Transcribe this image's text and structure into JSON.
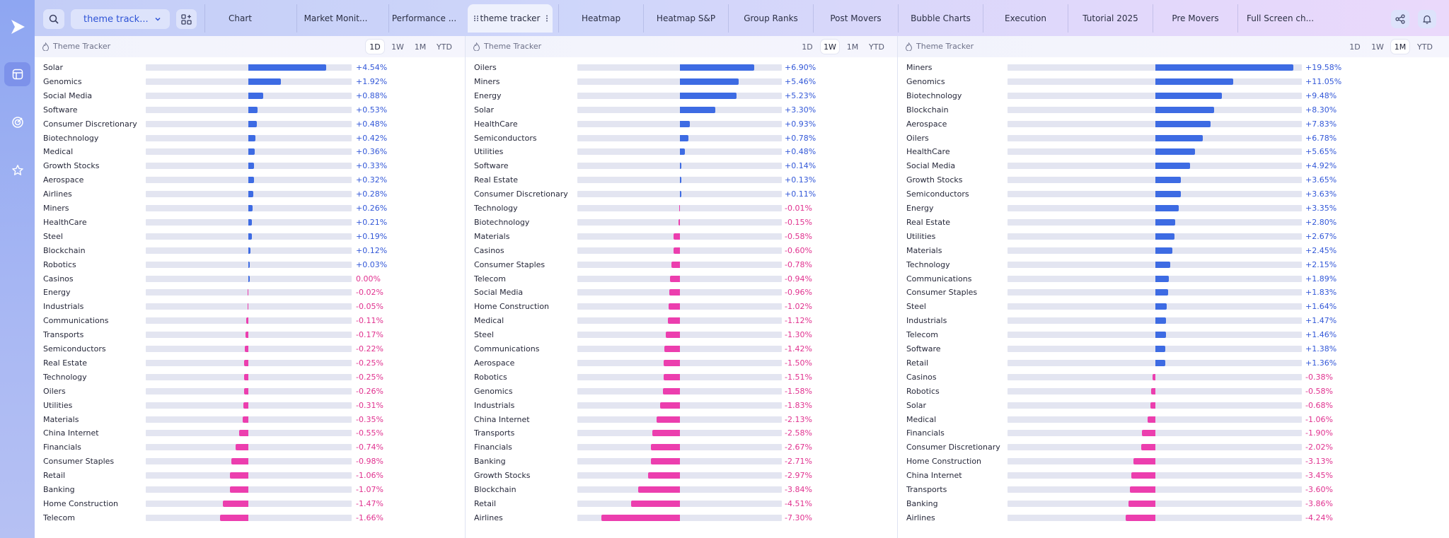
{
  "toolbar": {
    "selected_layout": "theme track...",
    "tabs": [
      "Chart",
      "Market Monit...",
      "Performance ...",
      "theme tracker",
      "Heatmap",
      "Heatmap S&P",
      "Group Ranks",
      "Post Movers",
      "Bubble Charts",
      "Execution",
      "Tutorial 2025",
      "Pre Movers",
      "Full Screen ch..."
    ],
    "active_tab": "theme tracker"
  },
  "colors": {
    "positive": "#3d6be3",
    "negative": "#ec3eae",
    "track": "#e3e5f1"
  },
  "panels": [
    {
      "title": "Theme Tracker",
      "ranges": [
        "1D",
        "1W",
        "1M",
        "YTD"
      ],
      "active_range": "1D",
      "scale": 6.0,
      "rows": [
        {
          "label": "Solar",
          "value": 4.54,
          "text": "+4.54%"
        },
        {
          "label": "Genomics",
          "value": 1.92,
          "text": "+1.92%"
        },
        {
          "label": "Social Media",
          "value": 0.88,
          "text": "+0.88%"
        },
        {
          "label": "Software",
          "value": 0.53,
          "text": "+0.53%"
        },
        {
          "label": "Consumer Discretionary",
          "value": 0.48,
          "text": "+0.48%"
        },
        {
          "label": "Biotechnology",
          "value": 0.42,
          "text": "+0.42%"
        },
        {
          "label": "Medical",
          "value": 0.36,
          "text": "+0.36%"
        },
        {
          "label": "Growth Stocks",
          "value": 0.33,
          "text": "+0.33%"
        },
        {
          "label": "Aerospace",
          "value": 0.32,
          "text": "+0.32%"
        },
        {
          "label": "Airlines",
          "value": 0.28,
          "text": "+0.28%"
        },
        {
          "label": "Miners",
          "value": 0.26,
          "text": "+0.26%"
        },
        {
          "label": "HealthCare",
          "value": 0.21,
          "text": "+0.21%"
        },
        {
          "label": "Steel",
          "value": 0.19,
          "text": "+0.19%"
        },
        {
          "label": "Blockchain",
          "value": 0.12,
          "text": "+0.12%"
        },
        {
          "label": "Robotics",
          "value": 0.03,
          "text": "+0.03%"
        },
        {
          "label": "Casinos",
          "value": 0.0,
          "text": "0.00%"
        },
        {
          "label": "Energy",
          "value": -0.02,
          "text": "-0.02%"
        },
        {
          "label": "Industrials",
          "value": -0.05,
          "text": "-0.05%"
        },
        {
          "label": "Communications",
          "value": -0.11,
          "text": "-0.11%"
        },
        {
          "label": "Transports",
          "value": -0.17,
          "text": "-0.17%"
        },
        {
          "label": "Semiconductors",
          "value": -0.22,
          "text": "-0.22%"
        },
        {
          "label": "Real Estate",
          "value": -0.25,
          "text": "-0.25%"
        },
        {
          "label": "Technology",
          "value": -0.25,
          "text": "-0.25%"
        },
        {
          "label": "Oilers",
          "value": -0.26,
          "text": "-0.26%"
        },
        {
          "label": "Utilities",
          "value": -0.31,
          "text": "-0.31%"
        },
        {
          "label": "Materials",
          "value": -0.35,
          "text": "-0.35%"
        },
        {
          "label": "China Internet",
          "value": -0.55,
          "text": "-0.55%"
        },
        {
          "label": "Financials",
          "value": -0.74,
          "text": "-0.74%"
        },
        {
          "label": "Consumer Staples",
          "value": -0.98,
          "text": "-0.98%"
        },
        {
          "label": "Retail",
          "value": -1.06,
          "text": "-1.06%"
        },
        {
          "label": "Banking",
          "value": -1.07,
          "text": "-1.07%"
        },
        {
          "label": "Home Construction",
          "value": -1.47,
          "text": "-1.47%"
        },
        {
          "label": "Telecom",
          "value": -1.66,
          "text": "-1.66%"
        }
      ]
    },
    {
      "title": "Theme Tracker",
      "ranges": [
        "1D",
        "1W",
        "1M",
        "YTD"
      ],
      "active_range": "1W",
      "scale": 9.5,
      "rows": [
        {
          "label": "Oilers",
          "value": 6.9,
          "text": "+6.90%"
        },
        {
          "label": "Miners",
          "value": 5.46,
          "text": "+5.46%"
        },
        {
          "label": "Energy",
          "value": 5.23,
          "text": "+5.23%"
        },
        {
          "label": "Solar",
          "value": 3.3,
          "text": "+3.30%"
        },
        {
          "label": "HealthCare",
          "value": 0.93,
          "text": "+0.93%"
        },
        {
          "label": "Semiconductors",
          "value": 0.78,
          "text": "+0.78%"
        },
        {
          "label": "Utilities",
          "value": 0.48,
          "text": "+0.48%"
        },
        {
          "label": "Software",
          "value": 0.14,
          "text": "+0.14%"
        },
        {
          "label": "Real Estate",
          "value": 0.13,
          "text": "+0.13%"
        },
        {
          "label": "Consumer Discretionary",
          "value": 0.11,
          "text": "+0.11%"
        },
        {
          "label": "Technology",
          "value": -0.01,
          "text": "-0.01%"
        },
        {
          "label": "Biotechnology",
          "value": -0.15,
          "text": "-0.15%"
        },
        {
          "label": "Materials",
          "value": -0.58,
          "text": "-0.58%"
        },
        {
          "label": "Casinos",
          "value": -0.6,
          "text": "-0.60%"
        },
        {
          "label": "Consumer Staples",
          "value": -0.78,
          "text": "-0.78%"
        },
        {
          "label": "Telecom",
          "value": -0.94,
          "text": "-0.94%"
        },
        {
          "label": "Social Media",
          "value": -0.96,
          "text": "-0.96%"
        },
        {
          "label": "Home Construction",
          "value": -1.02,
          "text": "-1.02%"
        },
        {
          "label": "Medical",
          "value": -1.12,
          "text": "-1.12%"
        },
        {
          "label": "Steel",
          "value": -1.3,
          "text": "-1.30%"
        },
        {
          "label": "Communications",
          "value": -1.42,
          "text": "-1.42%"
        },
        {
          "label": "Aerospace",
          "value": -1.5,
          "text": "-1.50%"
        },
        {
          "label": "Robotics",
          "value": -1.51,
          "text": "-1.51%"
        },
        {
          "label": "Genomics",
          "value": -1.58,
          "text": "-1.58%"
        },
        {
          "label": "Industrials",
          "value": -1.83,
          "text": "-1.83%"
        },
        {
          "label": "China Internet",
          "value": -2.13,
          "text": "-2.13%"
        },
        {
          "label": "Transports",
          "value": -2.58,
          "text": "-2.58%"
        },
        {
          "label": "Financials",
          "value": -2.67,
          "text": "-2.67%"
        },
        {
          "label": "Banking",
          "value": -2.71,
          "text": "-2.71%"
        },
        {
          "label": "Growth Stocks",
          "value": -2.97,
          "text": "-2.97%"
        },
        {
          "label": "Blockchain",
          "value": -3.84,
          "text": "-3.84%"
        },
        {
          "label": "Retail",
          "value": -4.51,
          "text": "-4.51%"
        },
        {
          "label": "Airlines",
          "value": -7.3,
          "text": "-7.30%"
        }
      ]
    },
    {
      "title": "Theme Tracker",
      "ranges": [
        "1D",
        "1W",
        "1M",
        "YTD"
      ],
      "active_range": "1M",
      "scale": 21.0,
      "rows": [
        {
          "label": "Miners",
          "value": 19.58,
          "text": "+19.58%"
        },
        {
          "label": "Genomics",
          "value": 11.05,
          "text": "+11.05%"
        },
        {
          "label": "Biotechnology",
          "value": 9.48,
          "text": "+9.48%"
        },
        {
          "label": "Blockchain",
          "value": 8.3,
          "text": "+8.30%"
        },
        {
          "label": "Aerospace",
          "value": 7.83,
          "text": "+7.83%"
        },
        {
          "label": "Oilers",
          "value": 6.78,
          "text": "+6.78%"
        },
        {
          "label": "HealthCare",
          "value": 5.65,
          "text": "+5.65%"
        },
        {
          "label": "Social Media",
          "value": 4.92,
          "text": "+4.92%"
        },
        {
          "label": "Growth Stocks",
          "value": 3.65,
          "text": "+3.65%"
        },
        {
          "label": "Semiconductors",
          "value": 3.63,
          "text": "+3.63%"
        },
        {
          "label": "Energy",
          "value": 3.35,
          "text": "+3.35%"
        },
        {
          "label": "Real Estate",
          "value": 2.8,
          "text": "+2.80%"
        },
        {
          "label": "Utilities",
          "value": 2.67,
          "text": "+2.67%"
        },
        {
          "label": "Materials",
          "value": 2.45,
          "text": "+2.45%"
        },
        {
          "label": "Technology",
          "value": 2.15,
          "text": "+2.15%"
        },
        {
          "label": "Communications",
          "value": 1.89,
          "text": "+1.89%"
        },
        {
          "label": "Consumer Staples",
          "value": 1.83,
          "text": "+1.83%"
        },
        {
          "label": "Steel",
          "value": 1.64,
          "text": "+1.64%"
        },
        {
          "label": "Industrials",
          "value": 1.47,
          "text": "+1.47%"
        },
        {
          "label": "Telecom",
          "value": 1.46,
          "text": "+1.46%"
        },
        {
          "label": "Software",
          "value": 1.38,
          "text": "+1.38%"
        },
        {
          "label": "Retail",
          "value": 1.36,
          "text": "+1.36%"
        },
        {
          "label": "Casinos",
          "value": -0.38,
          "text": "-0.38%"
        },
        {
          "label": "Robotics",
          "value": -0.58,
          "text": "-0.58%"
        },
        {
          "label": "Solar",
          "value": -0.68,
          "text": "-0.68%"
        },
        {
          "label": "Medical",
          "value": -1.06,
          "text": "-1.06%"
        },
        {
          "label": "Financials",
          "value": -1.9,
          "text": "-1.90%"
        },
        {
          "label": "Consumer Discretionary",
          "value": -2.02,
          "text": "-2.02%"
        },
        {
          "label": "Home Construction",
          "value": -3.13,
          "text": "-3.13%"
        },
        {
          "label": "China Internet",
          "value": -3.45,
          "text": "-3.45%"
        },
        {
          "label": "Transports",
          "value": -3.6,
          "text": "-3.60%"
        },
        {
          "label": "Banking",
          "value": -3.86,
          "text": "-3.86%"
        },
        {
          "label": "Airlines",
          "value": -4.24,
          "text": "-4.24%"
        }
      ]
    }
  ]
}
